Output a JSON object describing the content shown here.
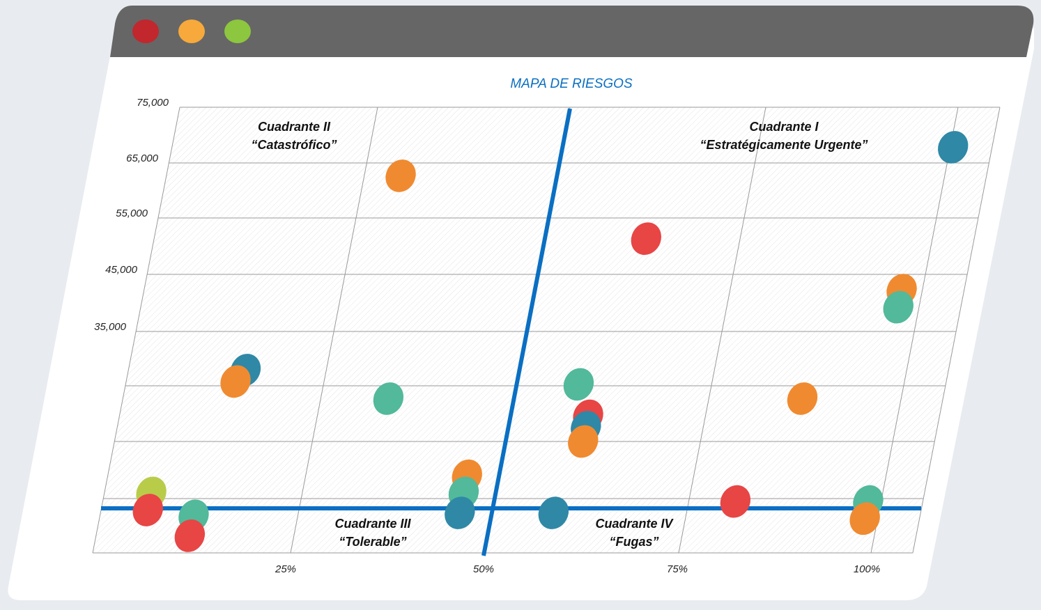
{
  "window": {
    "controls": [
      {
        "name": "close",
        "color": "#c1272d"
      },
      {
        "name": "minimize",
        "color": "#f7a93b"
      },
      {
        "name": "maximize",
        "color": "#8dc63f"
      }
    ],
    "titlebar_color": "#666666",
    "body_color": "#ffffff"
  },
  "colors": {
    "red": "#e84545",
    "orange": "#f08a30",
    "teal": "#52b99a",
    "blue": "#2f88a6",
    "lime": "#b9cc4a",
    "axis_line": "#0a6fc2",
    "grid": "#9a9a9a",
    "title": "#0a6fc2"
  },
  "chart_data": {
    "type": "scatter",
    "title": "MAPA DE RIESGOS",
    "xlabel": "",
    "ylabel": "",
    "x_ticks": [
      "25%",
      "50%",
      "75%",
      "100%"
    ],
    "y_ticks": [
      "35,000",
      "45,000",
      "55,000",
      "65,000",
      "75,000"
    ],
    "xlim": [
      0,
      105
    ],
    "ylim": [
      -3000,
      75000
    ],
    "divider_x": 50,
    "divider_y": 4800,
    "quadrants": [
      {
        "line1": "Cuadrante I",
        "line2": "“Estratégicamente Urgente”"
      },
      {
        "line1": "Cuadrante II",
        "line2": "“Catastrófico”"
      },
      {
        "line1": "Cuadrante III",
        "line2": "“Tolerable”"
      },
      {
        "line1": "Cuadrante IV",
        "line2": "“Fugas”"
      }
    ],
    "points": [
      {
        "x": 30,
        "y": 63000,
        "color": "orange"
      },
      {
        "x": 63,
        "y": 52000,
        "color": "red"
      },
      {
        "x": 100,
        "y": 68000,
        "color": "blue"
      },
      {
        "x": 97,
        "y": 43000,
        "color": "orange"
      },
      {
        "x": 97,
        "y": 40000,
        "color": "teal"
      },
      {
        "x": 15,
        "y": 29000,
        "color": "blue"
      },
      {
        "x": 14,
        "y": 27000,
        "color": "orange"
      },
      {
        "x": 58,
        "y": 26500,
        "color": "teal"
      },
      {
        "x": 34,
        "y": 24000,
        "color": "teal"
      },
      {
        "x": 87,
        "y": 24000,
        "color": "orange"
      },
      {
        "x": 60,
        "y": 21000,
        "color": "red"
      },
      {
        "x": 60,
        "y": 19000,
        "color": "blue"
      },
      {
        "x": 60,
        "y": 16500,
        "color": "orange"
      },
      {
        "x": 46,
        "y": 10500,
        "color": "orange"
      },
      {
        "x": 46,
        "y": 7500,
        "color": "teal"
      },
      {
        "x": 46,
        "y": 4000,
        "color": "blue"
      },
      {
        "x": 58,
        "y": 4000,
        "color": "blue"
      },
      {
        "x": 81,
        "y": 6000,
        "color": "red"
      },
      {
        "x": 98,
        "y": 6000,
        "color": "teal"
      },
      {
        "x": 98,
        "y": 3000,
        "color": "orange"
      },
      {
        "x": 6,
        "y": 7500,
        "color": "lime"
      },
      {
        "x": 6,
        "y": 4500,
        "color": "red"
      },
      {
        "x": 12,
        "y": 3500,
        "color": "teal"
      },
      {
        "x": 12,
        "y": 0,
        "color": "red"
      }
    ]
  }
}
